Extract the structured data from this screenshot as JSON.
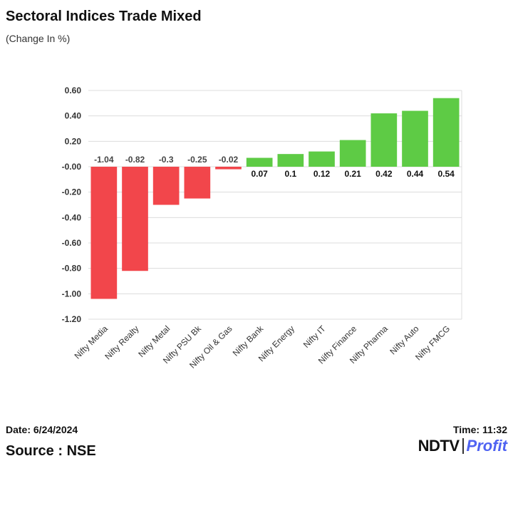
{
  "header": {
    "title": "Sectoral Indices Trade Mixed",
    "subtitle": "(Change In %)"
  },
  "chart_data": {
    "type": "bar",
    "categories": [
      "Nifty Media",
      "Nifty Realty",
      "Nifty Metal",
      "Nifty PSU Bk",
      "Nifty Oil & Gas",
      "Nifty Bank",
      "Nifty Energy",
      "Nifty IT",
      "Nifty Finance",
      "Nifty Pharma",
      "Nifty Auto",
      "Nifty FMCG"
    ],
    "values": [
      -1.04,
      -0.82,
      -0.3,
      -0.25,
      -0.02,
      0.07,
      0.1,
      0.12,
      0.21,
      0.42,
      0.44,
      0.54
    ],
    "data_labels": [
      "-1.04",
      "-0.82",
      "-0.3",
      "-0.25",
      "-0.02",
      "0.07",
      "0.1",
      "0.12",
      "0.21",
      "0.42",
      "0.44",
      "0.54"
    ],
    "yticks": [
      "0.60",
      "0.40",
      "0.20",
      "-0.00",
      "-0.20",
      "-0.40",
      "-0.60",
      "-0.80",
      "-1.00",
      "-1.20"
    ],
    "ylim": [
      -1.2,
      0.6
    ],
    "grid": true,
    "colors": {
      "negative": "#f2464b",
      "positive": "#5ecb45"
    }
  },
  "footer": {
    "date": "Date: 6/24/2024",
    "time": "Time: 11:32",
    "source": "Source : NSE",
    "logo_brand": "NDTV",
    "logo_product": "Profit"
  }
}
